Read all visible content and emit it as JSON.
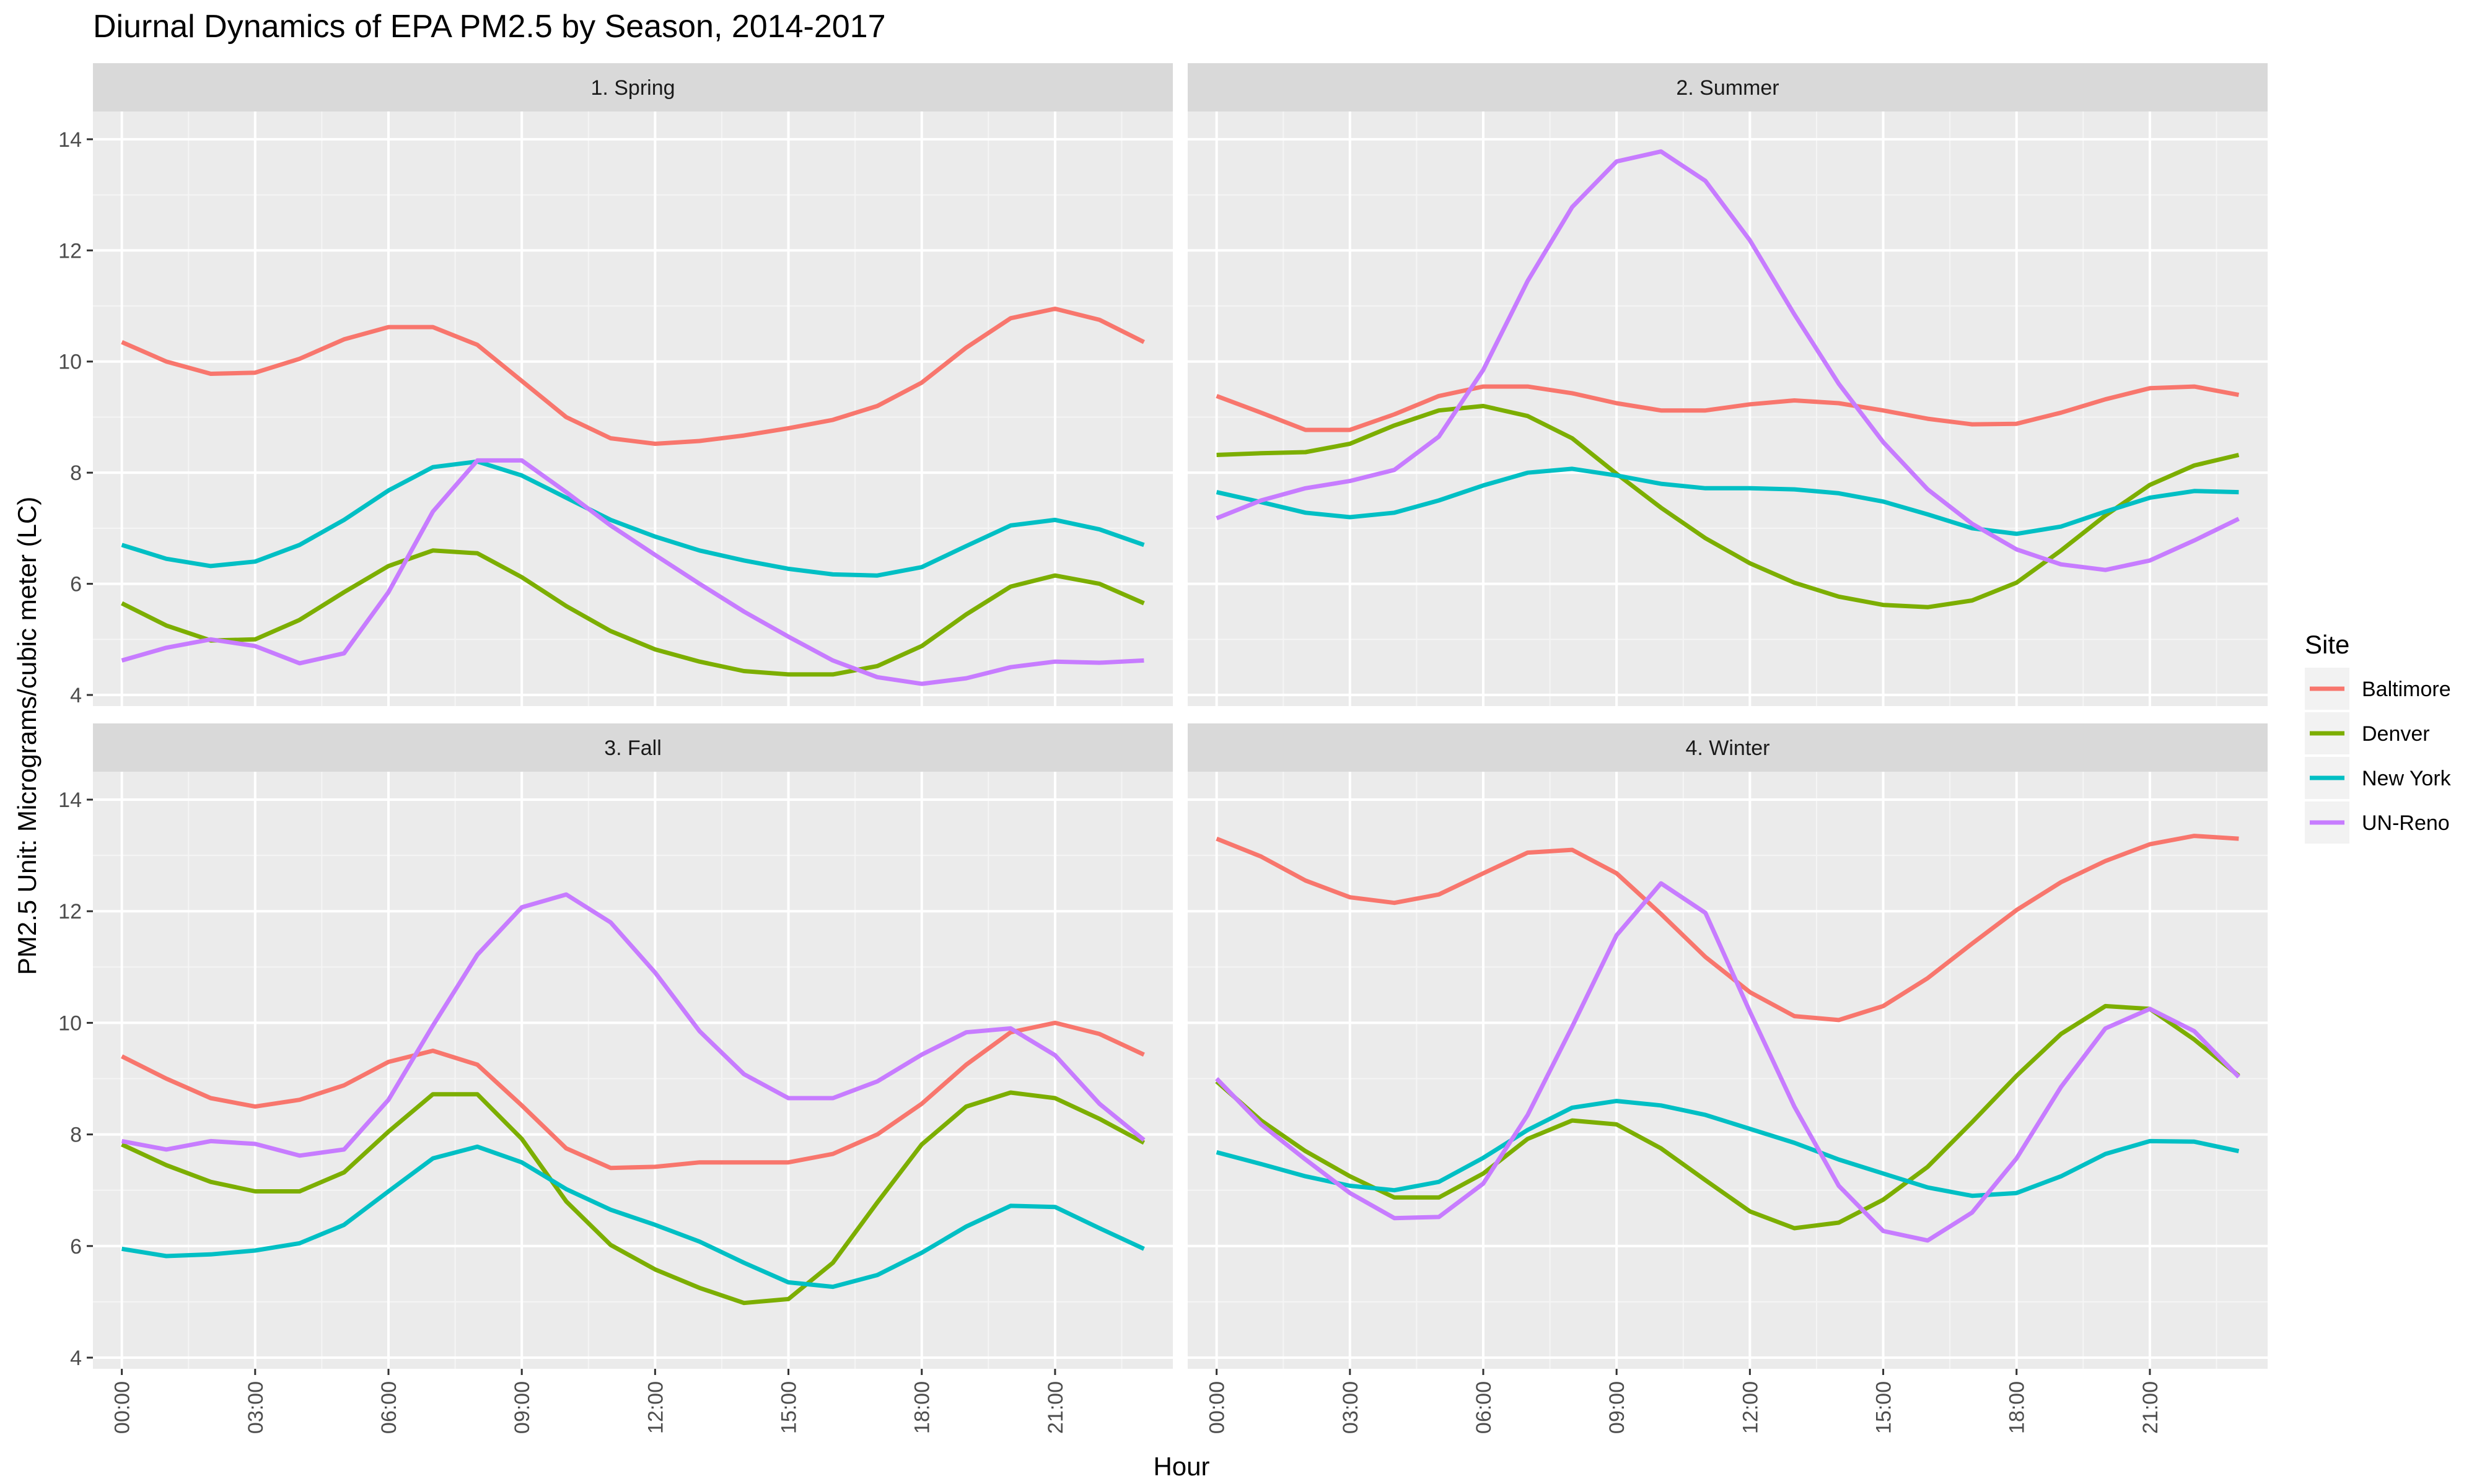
{
  "chart_data": {
    "type": "line",
    "title": "Diurnal Dynamics of EPA PM2.5 by Season, 2014-2017",
    "xlabel": "Hour",
    "ylabel": "PM2.5 Unit: Micrograms/cubic meter (LC)",
    "ylim": [
      3.8,
      14.5
    ],
    "y_ticks": [
      4,
      6,
      8,
      10,
      12,
      14
    ],
    "x_tick_labels": [
      "00:00",
      "03:00",
      "06:00",
      "09:00",
      "12:00",
      "15:00",
      "18:00",
      "21:00"
    ],
    "x_tick_hours": [
      0,
      3,
      6,
      9,
      12,
      15,
      18,
      21
    ],
    "x": [
      0,
      1,
      2,
      3,
      4,
      5,
      6,
      7,
      8,
      9,
      10,
      11,
      12,
      13,
      14,
      15,
      16,
      17,
      18,
      19,
      20,
      21,
      22,
      23
    ],
    "grid": true,
    "legend": {
      "title": "Site",
      "position": "right",
      "entries": [
        "Baltimore",
        "Denver",
        "New York",
        "UN-Reno"
      ]
    },
    "colors": {
      "Baltimore": "#F8766D",
      "Denver": "#7CAE00",
      "New York": "#00BFC4",
      "UN-Reno": "#C77CFF"
    },
    "panels": [
      {
        "label": "1. Spring",
        "series": [
          {
            "name": "Baltimore",
            "values": [
              10.35,
              10.0,
              9.78,
              9.8,
              10.05,
              10.4,
              10.62,
              10.62,
              10.3,
              9.65,
              9.0,
              8.62,
              8.52,
              8.57,
              8.67,
              8.8,
              8.95,
              9.2,
              9.62,
              10.25,
              10.78,
              10.95,
              10.75,
              10.35
            ]
          },
          {
            "name": "Denver",
            "values": [
              5.65,
              5.25,
              4.98,
              5.0,
              5.35,
              5.85,
              6.32,
              6.6,
              6.55,
              6.12,
              5.6,
              5.15,
              4.82,
              4.6,
              4.43,
              4.37,
              4.37,
              4.52,
              4.88,
              5.45,
              5.95,
              6.15,
              6.0,
              5.65
            ]
          },
          {
            "name": "New York",
            "values": [
              6.7,
              6.45,
              6.32,
              6.4,
              6.7,
              7.15,
              7.68,
              8.1,
              8.2,
              7.95,
              7.55,
              7.15,
              6.85,
              6.6,
              6.42,
              6.27,
              6.17,
              6.15,
              6.3,
              6.68,
              7.05,
              7.15,
              6.98,
              6.7
            ]
          },
          {
            "name": "UN-Reno",
            "values": [
              4.62,
              4.85,
              5.0,
              4.88,
              4.57,
              4.75,
              5.85,
              7.3,
              8.22,
              8.22,
              7.65,
              7.05,
              6.52,
              6.0,
              5.5,
              5.05,
              4.62,
              4.32,
              4.2,
              4.3,
              4.5,
              4.6,
              4.58,
              4.62
            ]
          }
        ]
      },
      {
        "label": "2. Summer",
        "series": [
          {
            "name": "Baltimore",
            "values": [
              9.38,
              9.08,
              8.77,
              8.77,
              9.05,
              9.38,
              9.55,
              9.55,
              9.43,
              9.25,
              9.12,
              9.12,
              9.23,
              9.3,
              9.25,
              9.12,
              8.97,
              8.87,
              8.88,
              9.08,
              9.32,
              9.52,
              9.55,
              9.4
            ]
          },
          {
            "name": "Denver",
            "values": [
              8.32,
              8.35,
              8.37,
              8.52,
              8.85,
              9.12,
              9.2,
              9.02,
              8.62,
              7.98,
              7.37,
              6.82,
              6.37,
              6.02,
              5.77,
              5.62,
              5.58,
              5.7,
              6.02,
              6.6,
              7.23,
              7.78,
              8.13,
              8.32
            ]
          },
          {
            "name": "New York",
            "values": [
              7.65,
              7.47,
              7.28,
              7.2,
              7.28,
              7.5,
              7.77,
              8.0,
              8.07,
              7.95,
              7.8,
              7.72,
              7.72,
              7.7,
              7.63,
              7.48,
              7.25,
              7.0,
              6.9,
              7.03,
              7.3,
              7.55,
              7.67,
              7.65
            ]
          },
          {
            "name": "UN-Reno",
            "values": [
              7.18,
              7.5,
              7.72,
              7.85,
              8.05,
              8.65,
              9.85,
              11.45,
              12.78,
              13.6,
              13.78,
              13.25,
              12.18,
              10.85,
              9.6,
              8.55,
              7.7,
              7.08,
              6.62,
              6.35,
              6.25,
              6.42,
              6.78,
              7.17
            ]
          }
        ]
      },
      {
        "label": "3. Fall",
        "series": [
          {
            "name": "Baltimore",
            "values": [
              9.4,
              9.0,
              8.65,
              8.5,
              8.62,
              8.88,
              9.3,
              9.5,
              9.25,
              8.52,
              7.75,
              7.4,
              7.42,
              7.5,
              7.5,
              7.5,
              7.65,
              8.0,
              8.55,
              9.25,
              9.83,
              10.0,
              9.8,
              9.43
            ]
          },
          {
            "name": "Denver",
            "values": [
              7.82,
              7.45,
              7.15,
              6.98,
              6.98,
              7.32,
              8.05,
              8.72,
              8.72,
              7.92,
              6.8,
              6.02,
              5.58,
              5.25,
              4.98,
              5.05,
              5.7,
              6.78,
              7.82,
              8.5,
              8.75,
              8.65,
              8.28,
              7.85
            ]
          },
          {
            "name": "New York",
            "values": [
              5.95,
              5.82,
              5.85,
              5.92,
              6.05,
              6.38,
              6.98,
              7.57,
              7.78,
              7.5,
              7.02,
              6.65,
              6.38,
              6.08,
              5.7,
              5.35,
              5.27,
              5.48,
              5.88,
              6.35,
              6.72,
              6.7,
              6.32,
              5.95
            ]
          },
          {
            "name": "UN-Reno",
            "values": [
              7.88,
              7.73,
              7.88,
              7.83,
              7.62,
              7.73,
              8.62,
              9.95,
              11.22,
              12.07,
              12.3,
              11.8,
              10.9,
              9.85,
              9.08,
              8.65,
              8.65,
              8.95,
              9.43,
              9.83,
              9.9,
              9.42,
              8.55,
              7.9
            ]
          }
        ]
      },
      {
        "label": "4. Winter",
        "series": [
          {
            "name": "Baltimore",
            "values": [
              13.3,
              12.98,
              12.55,
              12.25,
              12.15,
              12.3,
              12.68,
              13.05,
              13.1,
              12.68,
              11.95,
              11.18,
              10.55,
              10.12,
              10.05,
              10.3,
              10.8,
              11.42,
              12.02,
              12.52,
              12.9,
              13.2,
              13.35,
              13.3
            ]
          },
          {
            "name": "Denver",
            "values": [
              8.95,
              8.25,
              7.7,
              7.25,
              6.87,
              6.87,
              7.3,
              7.92,
              8.25,
              8.18,
              7.75,
              7.18,
              6.62,
              6.32,
              6.42,
              6.83,
              7.42,
              8.22,
              9.05,
              9.8,
              10.3,
              10.25,
              9.7,
              9.05
            ]
          },
          {
            "name": "New York",
            "values": [
              7.68,
              7.47,
              7.25,
              7.08,
              7.0,
              7.15,
              7.58,
              8.08,
              8.48,
              8.6,
              8.52,
              8.35,
              8.1,
              7.85,
              7.55,
              7.3,
              7.05,
              6.9,
              6.95,
              7.25,
              7.65,
              7.88,
              7.87,
              7.7
            ]
          },
          {
            "name": "UN-Reno",
            "values": [
              9.0,
              8.18,
              7.55,
              6.95,
              6.5,
              6.52,
              7.12,
              8.35,
              9.93,
              11.57,
              12.5,
              11.97,
              10.2,
              8.5,
              7.08,
              6.27,
              6.1,
              6.6,
              7.57,
              8.85,
              9.9,
              10.25,
              9.85,
              9.03
            ]
          }
        ]
      }
    ]
  }
}
